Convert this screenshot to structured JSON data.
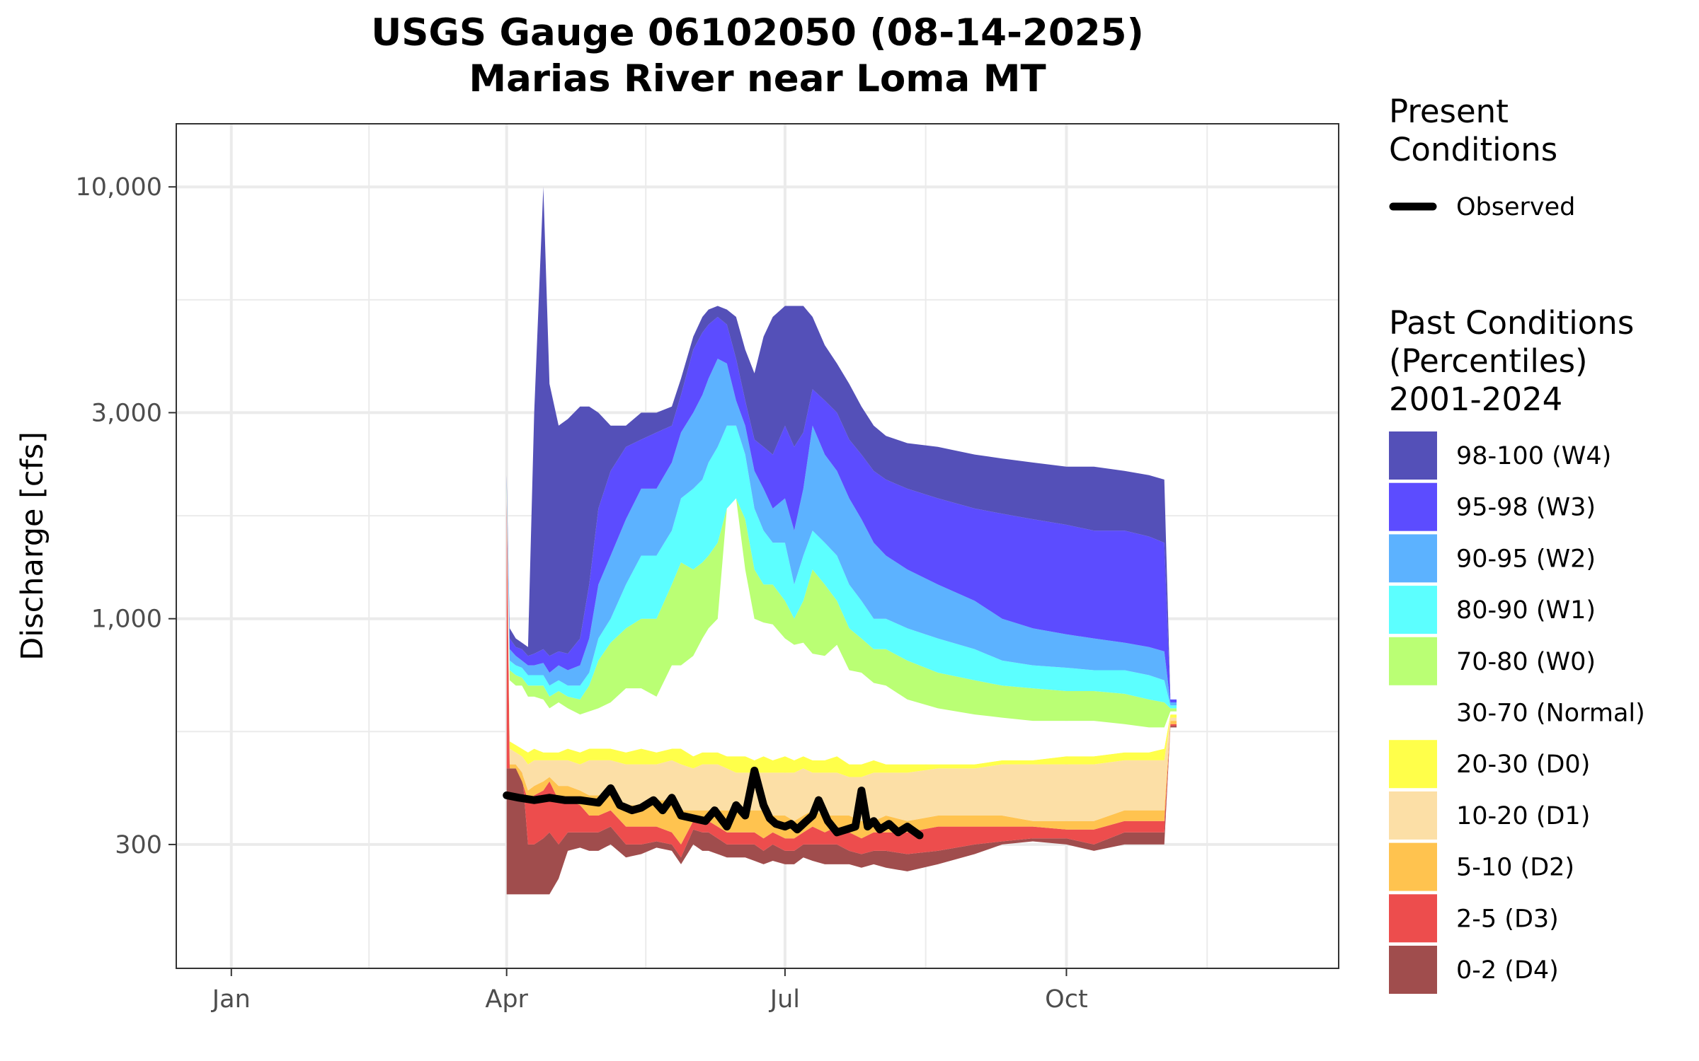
{
  "chart_data": {
    "type": "area",
    "title": "USGS Gauge 06102050 (08-14-2025)",
    "subtitle": "Marias River near Loma MT",
    "ylabel": "Discharge [cfs]",
    "xlabel": "",
    "y_scale": "log10",
    "ylim": [
      155,
      14000
    ],
    "xlim": [
      "2025-12-14",
      "2026-12-29"
    ],
    "x_ticks": [
      {
        "date": "2026-01-01",
        "label": "Jan"
      },
      {
        "date": "2026-04-01",
        "label": "Apr"
      },
      {
        "date": "2026-07-01",
        "label": "Jul"
      },
      {
        "date": "2026-10-01",
        "label": "Oct"
      }
    ],
    "y_ticks": [
      {
        "value": 300,
        "label": "300"
      },
      {
        "value": 1000,
        "label": "1,000"
      },
      {
        "value": 3000,
        "label": "3,000"
      },
      {
        "value": 10000,
        "label": "10,000"
      }
    ],
    "grid": true,
    "legend_position": "right",
    "legend_present": {
      "title_lines": [
        "Present",
        "Conditions"
      ],
      "entries": [
        {
          "name": "Observed",
          "color": "#000000"
        }
      ]
    },
    "legend_past": {
      "title_lines": [
        "Past Conditions",
        "(Percentiles)",
        "2001-2024"
      ],
      "entries": [
        {
          "name": "98-100 (W4)",
          "color": "#5450B8"
        },
        {
          "name": "95-98 (W3)",
          "color": "#5C4CFF"
        },
        {
          "name": "90-95 (W2)",
          "color": "#5CB2FF"
        },
        {
          "name": "80-90 (W1)",
          "color": "#5CFFFF"
        },
        {
          "name": "70-80 (W0)",
          "color": "#BAFF74"
        },
        {
          "name": "30-70 (Normal)",
          "color": "#FFFFFF"
        },
        {
          "name": "20-30 (D0)",
          "color": "#FFFF4A"
        },
        {
          "name": "10-20 (D1)",
          "color": "#FCDFA6"
        },
        {
          "name": "5-10 (D2)",
          "color": "#FFC34F"
        },
        {
          "name": "2-5 (D3)",
          "color": "#ED4D4D"
        },
        {
          "name": "0-2 (D4)",
          "color": "#A04D4D"
        }
      ]
    },
    "bands_x": [
      "2026-04-01",
      "2026-04-02",
      "2026-04-04",
      "2026-04-06",
      "2026-04-08",
      "2026-04-10",
      "2026-04-13",
      "2026-04-15",
      "2026-04-18",
      "2026-04-21",
      "2026-04-25",
      "2026-04-28",
      "2026-05-01",
      "2026-05-05",
      "2026-05-10",
      "2026-05-15",
      "2026-05-20",
      "2026-05-25",
      "2026-05-28",
      "2026-06-01",
      "2026-06-04",
      "2026-06-06",
      "2026-06-09",
      "2026-06-12",
      "2026-06-15",
      "2026-06-18",
      "2026-06-21",
      "2026-06-24",
      "2026-06-27",
      "2026-07-01",
      "2026-07-04",
      "2026-07-07",
      "2026-07-10",
      "2026-07-14",
      "2026-07-18",
      "2026-07-22",
      "2026-07-26",
      "2026-07-30",
      "2026-08-03",
      "2026-08-10",
      "2026-08-20",
      "2026-09-01",
      "2026-09-10",
      "2026-09-20",
      "2026-10-01",
      "2026-10-10",
      "2026-10-20",
      "2026-10-28",
      "2026-11-02",
      "2026-11-04",
      "2026-11-06"
    ],
    "bands_y": [
      [
        230,
        230,
        230,
        230,
        230,
        230,
        230,
        230,
        250,
        290,
        295,
        290,
        290,
        300,
        280,
        285,
        295,
        290,
        270,
        300,
        290,
        290,
        285,
        280,
        280,
        280,
        275,
        270,
        275,
        270,
        270,
        280,
        275,
        270,
        270,
        270,
        265,
        270,
        265,
        260,
        270,
        285,
        300,
        305,
        300,
        290,
        300,
        300,
        300,
        560,
        560
      ],
      [
        450,
        450,
        450,
        450,
        300,
        300,
        310,
        320,
        300,
        320,
        320,
        320,
        320,
        330,
        300,
        300,
        305,
        300,
        280,
        325,
        320,
        320,
        310,
        300,
        300,
        300,
        300,
        290,
        300,
        290,
        290,
        300,
        300,
        300,
        300,
        290,
        285,
        290,
        290,
        285,
        290,
        300,
        305,
        310,
        310,
        300,
        320,
        320,
        320,
        565,
        565
      ],
      [
        1900,
        450,
        450,
        420,
        380,
        390,
        400,
        420,
        380,
        380,
        370,
        350,
        350,
        360,
        330,
        330,
        330,
        320,
        300,
        340,
        340,
        340,
        330,
        320,
        320,
        320,
        320,
        310,
        320,
        310,
        310,
        320,
        330,
        320,
        330,
        320,
        310,
        320,
        320,
        320,
        330,
        330,
        330,
        330,
        325,
        325,
        340,
        340,
        340,
        570,
        570
      ],
      [
        1900,
        460,
        460,
        440,
        400,
        410,
        420,
        430,
        410,
        410,
        400,
        390,
        390,
        390,
        370,
        370,
        380,
        380,
        360,
        360,
        360,
        360,
        360,
        360,
        360,
        360,
        360,
        360,
        350,
        350,
        340,
        350,
        360,
        350,
        350,
        350,
        340,
        340,
        350,
        340,
        350,
        350,
        350,
        340,
        340,
        340,
        360,
        360,
        360,
        580,
        580
      ],
      [
        1950,
        500,
        490,
        480,
        460,
        470,
        470,
        470,
        470,
        470,
        460,
        470,
        470,
        470,
        460,
        460,
        460,
        470,
        460,
        450,
        460,
        460,
        460,
        450,
        440,
        440,
        440,
        440,
        440,
        440,
        440,
        450,
        440,
        440,
        440,
        430,
        430,
        440,
        440,
        440,
        450,
        450,
        460,
        460,
        460,
        460,
        470,
        470,
        470,
        590,
        590
      ],
      [
        1950,
        520,
        510,
        500,
        490,
        500,
        490,
        490,
        490,
        500,
        490,
        500,
        500,
        500,
        490,
        500,
        490,
        500,
        500,
        480,
        490,
        490,
        490,
        480,
        480,
        480,
        470,
        480,
        470,
        480,
        470,
        480,
        470,
        470,
        480,
        460,
        460,
        470,
        460,
        460,
        460,
        460,
        470,
        470,
        480,
        480,
        490,
        490,
        500,
        600,
        600
      ],
      [
        2000,
        720,
        700,
        700,
        660,
        660,
        650,
        620,
        640,
        620,
        600,
        610,
        620,
        640,
        690,
        690,
        660,
        780,
        780,
        820,
        900,
        950,
        1000,
        1800,
        1900,
        1300,
        1000,
        980,
        970,
        900,
        870,
        880,
        830,
        820,
        870,
        760,
        750,
        710,
        700,
        650,
        620,
        600,
        590,
        580,
        580,
        580,
        570,
        560,
        560,
        610,
        610
      ],
      [
        2050,
        760,
        740,
        730,
        700,
        700,
        700,
        660,
        680,
        660,
        650,
        700,
        800,
        880,
        950,
        1000,
        1000,
        1200,
        1350,
        1300,
        1350,
        1400,
        1500,
        1800,
        1900,
        1700,
        1300,
        1200,
        1200,
        1100,
        1000,
        1100,
        1300,
        1200,
        1100,
        950,
        900,
        850,
        850,
        800,
        750,
        720,
        700,
        690,
        680,
        680,
        670,
        650,
        640,
        620,
        620
      ],
      [
        2050,
        800,
        780,
        770,
        740,
        740,
        740,
        700,
        720,
        700,
        700,
        750,
        900,
        1000,
        1200,
        1400,
        1400,
        1600,
        1900,
        2000,
        2100,
        2300,
        2500,
        2800,
        2800,
        2400,
        1800,
        1600,
        1500,
        1500,
        1200,
        1400,
        1600,
        1500,
        1400,
        1200,
        1100,
        1000,
        1000,
        950,
        900,
        850,
        800,
        780,
        770,
        760,
        760,
        740,
        720,
        630,
        630
      ],
      [
        2100,
        850,
        820,
        800,
        780,
        780,
        790,
        750,
        780,
        760,
        780,
        900,
        1200,
        1400,
        1700,
        2000,
        2000,
        2300,
        2700,
        3000,
        3300,
        3600,
        4000,
        3900,
        3200,
        2800,
        2200,
        2000,
        1800,
        1900,
        1600,
        2000,
        2800,
        2400,
        2200,
        1900,
        1700,
        1500,
        1400,
        1300,
        1200,
        1100,
        1000,
        950,
        920,
        900,
        880,
        860,
        840,
        640,
        640
      ],
      [
        2100,
        900,
        860,
        850,
        820,
        830,
        850,
        820,
        840,
        830,
        900,
        1200,
        1800,
        2200,
        2500,
        2600,
        2700,
        2800,
        3300,
        4200,
        4600,
        4800,
        5000,
        4800,
        4000,
        3200,
        2600,
        2500,
        2400,
        2800,
        2500,
        2700,
        3400,
        3200,
        3000,
        2600,
        2400,
        2200,
        2100,
        2000,
        1900,
        1800,
        1750,
        1700,
        1650,
        1600,
        1600,
        1550,
        1500,
        650,
        650
      ],
      [
        2150,
        950,
        900,
        880,
        860,
        3000,
        10000,
        3500,
        2800,
        2900,
        3100,
        3100,
        3000,
        2800,
        2800,
        3000,
        3000,
        3100,
        3600,
        4500,
        5000,
        5200,
        5300,
        5200,
        5000,
        4200,
        3700,
        4500,
        5000,
        5300,
        5300,
        5300,
        5000,
        4300,
        3900,
        3500,
        3100,
        2800,
        2650,
        2550,
        2500,
        2400,
        2350,
        2300,
        2250,
        2250,
        2200,
        2150,
        2100,
        650,
        650
      ]
    ],
    "observed_x": [
      "2026-04-01",
      "2026-04-05",
      "2026-04-10",
      "2026-04-15",
      "2026-04-20",
      "2026-04-25",
      "2026-05-01",
      "2026-05-05",
      "2026-05-08",
      "2026-05-12",
      "2026-05-15",
      "2026-05-19",
      "2026-05-22",
      "2026-05-25",
      "2026-05-28",
      "2026-06-01",
      "2026-06-05",
      "2026-06-08",
      "2026-06-12",
      "2026-06-15",
      "2026-06-18",
      "2026-06-21",
      "2026-06-24",
      "2026-06-26",
      "2026-06-28",
      "2026-07-01",
      "2026-07-03",
      "2026-07-05",
      "2026-07-08",
      "2026-07-10",
      "2026-07-12",
      "2026-07-15",
      "2026-07-18",
      "2026-07-21",
      "2026-07-24",
      "2026-07-26",
      "2026-07-28",
      "2026-07-30",
      "2026-08-01",
      "2026-08-04",
      "2026-08-07",
      "2026-08-10",
      "2026-08-14"
    ],
    "observed_y": [
      390,
      385,
      380,
      385,
      380,
      380,
      375,
      405,
      370,
      360,
      365,
      380,
      360,
      385,
      350,
      345,
      340,
      360,
      330,
      370,
      350,
      445,
      370,
      345,
      335,
      330,
      335,
      325,
      340,
      350,
      380,
      340,
      320,
      325,
      330,
      400,
      330,
      340,
      325,
      335,
      320,
      330,
      315
    ]
  }
}
